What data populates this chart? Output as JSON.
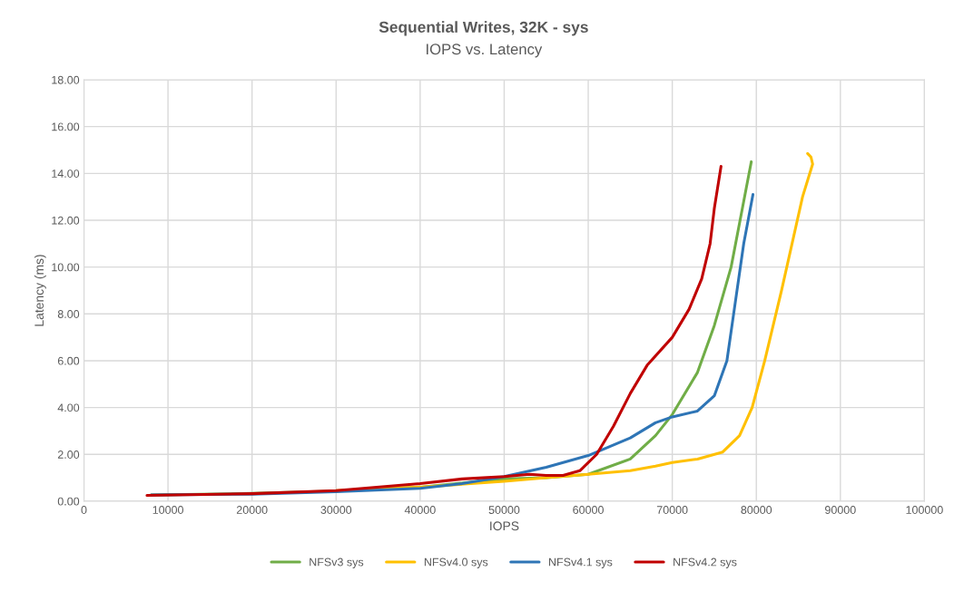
{
  "chart_data": {
    "type": "line",
    "title": "Sequential Writes, 32K - sys",
    "subtitle": "IOPS vs. Latency",
    "xlabel": "IOPS",
    "ylabel": "Latency (ms)",
    "xlim": [
      0,
      100000
    ],
    "xticks": [
      0,
      10000,
      20000,
      30000,
      40000,
      50000,
      60000,
      70000,
      80000,
      90000,
      100000
    ],
    "ylim": [
      0,
      18
    ],
    "yticks": [
      {
        "value": 0,
        "label": "0.00"
      },
      {
        "value": 2,
        "label": "2.00"
      },
      {
        "value": 4,
        "label": "4.00"
      },
      {
        "value": 6,
        "label": "6.00"
      },
      {
        "value": 8,
        "label": "8.00"
      },
      {
        "value": 10,
        "label": "10.00"
      },
      {
        "value": 12,
        "label": "12.00"
      },
      {
        "value": 14,
        "label": "14.00"
      },
      {
        "value": 16,
        "label": "16.00"
      },
      {
        "value": 18,
        "label": "18.00"
      }
    ],
    "grid": true,
    "legend": "bottom",
    "marker": "none",
    "line_style": "solid",
    "series": [
      {
        "name": "NFSv3 sys",
        "color": "#70ad47",
        "x": [
          8000,
          20000,
          30000,
          40000,
          50000,
          55000,
          60000,
          65000,
          68000,
          70000,
          73000,
          75000,
          77000,
          79400
        ],
        "values": [
          0.27,
          0.33,
          0.43,
          0.6,
          0.95,
          1.0,
          1.15,
          1.8,
          2.8,
          3.7,
          5.5,
          7.5,
          10,
          14.5
        ]
      },
      {
        "name": "NFSv4.0 sys",
        "color": "#ffc000",
        "x": [
          30000,
          40000,
          50000,
          55000,
          60000,
          65000,
          68000,
          70000,
          73000,
          76000,
          78000,
          79500,
          81000,
          83000,
          85500,
          86700,
          86500,
          86100
        ],
        "values": [
          0.45,
          0.6,
          0.85,
          1.0,
          1.15,
          1.3,
          1.5,
          1.65,
          1.8,
          2.1,
          2.8,
          4,
          6,
          9,
          13,
          14.4,
          14.7,
          14.85
        ]
      },
      {
        "name": "NFSv4.1 sys",
        "color": "#2e75b6",
        "x": [
          8000,
          20000,
          30000,
          40000,
          45000,
          50000,
          55000,
          60000,
          65000,
          68000,
          70000,
          73000,
          75000,
          76500,
          77500,
          78500,
          79600
        ],
        "values": [
          0.27,
          0.3,
          0.4,
          0.55,
          0.75,
          1.05,
          1.45,
          1.95,
          2.7,
          3.35,
          3.6,
          3.85,
          4.5,
          6,
          8.5,
          11,
          13.1
        ]
      },
      {
        "name": "NFSv4.2 sys",
        "color": "#c00000",
        "x": [
          7500,
          20000,
          30000,
          40000,
          45000,
          50000,
          53000,
          55000,
          57000,
          59000,
          61000,
          63000,
          65000,
          67000,
          70000,
          72000,
          73500,
          74500,
          75000,
          75800
        ],
        "values": [
          0.25,
          0.32,
          0.45,
          0.75,
          0.95,
          1.05,
          1.15,
          1.1,
          1.1,
          1.3,
          2.0,
          3.2,
          4.6,
          5.8,
          7.0,
          8.2,
          9.5,
          11,
          12.5,
          14.3
        ]
      }
    ]
  }
}
